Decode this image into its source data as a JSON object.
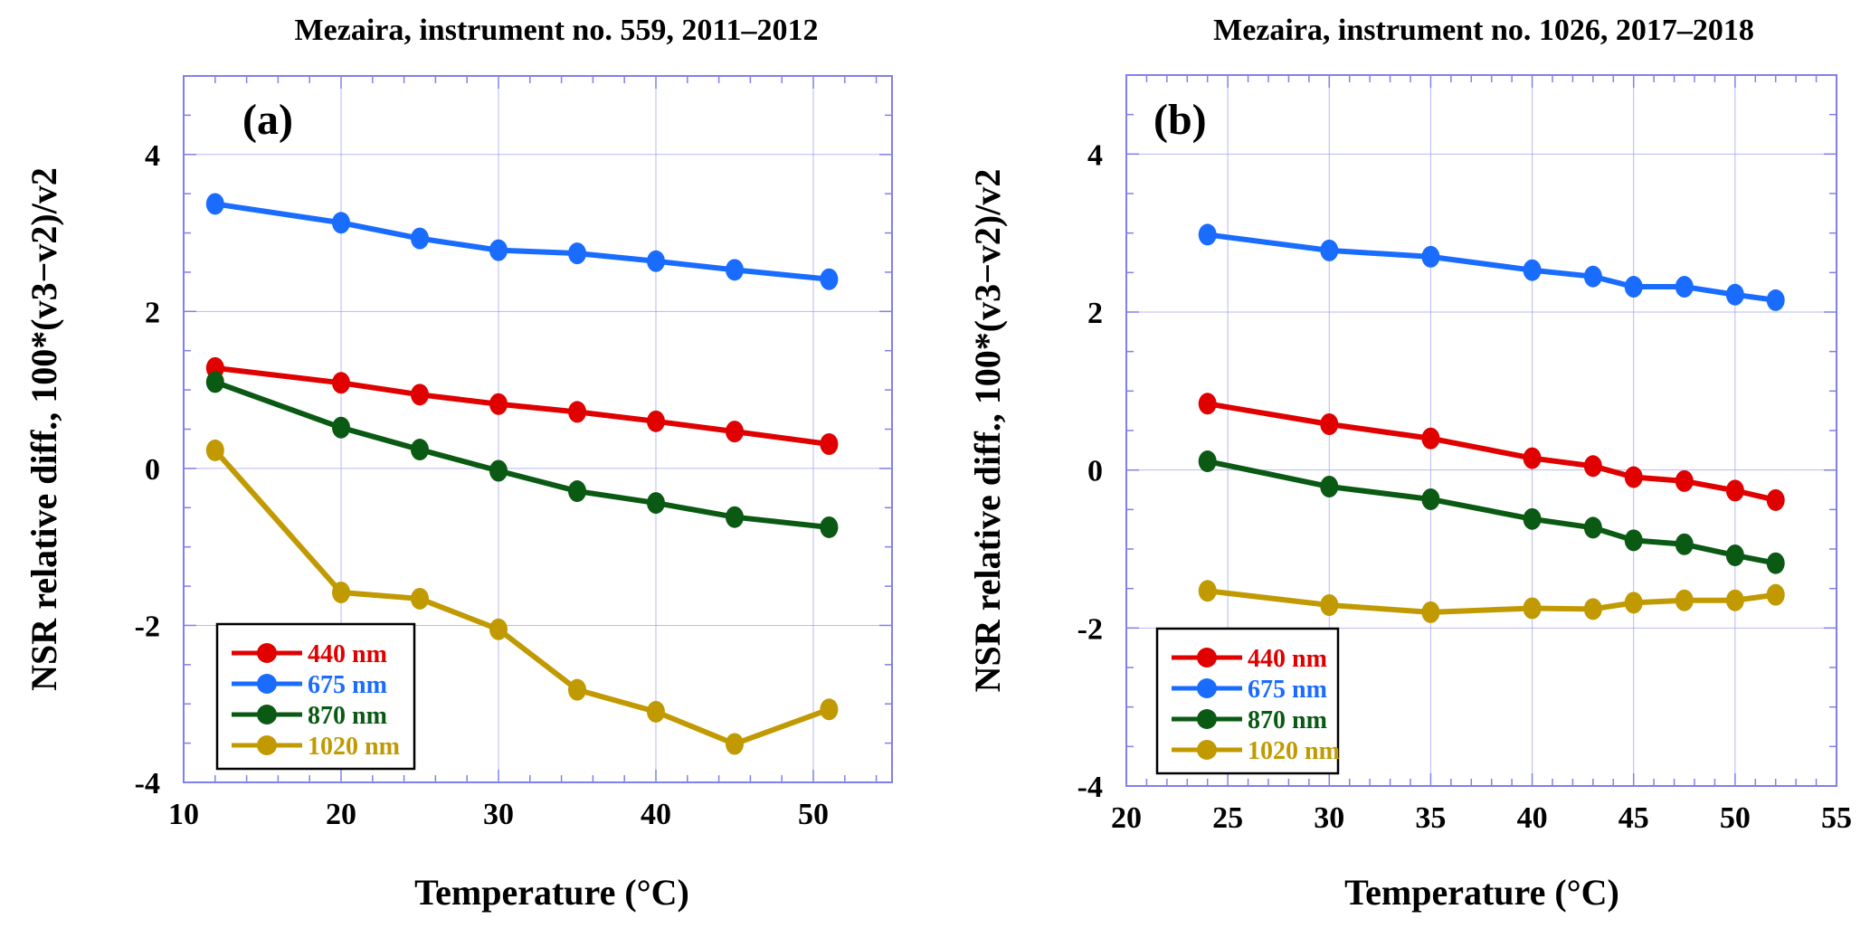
{
  "chart_data": [
    {
      "type": "line",
      "panel_label": "(a)",
      "title": "Mezaira, instrument no. 559, 2011–2012",
      "xlabel": "Temperature (°C)",
      "ylabel": "NSR relative diff., 100*(v3−v2)/v2",
      "xlim": [
        10,
        55
      ],
      "ylim": [
        -4,
        5
      ],
      "xticks": [
        10,
        20,
        30,
        40,
        50
      ],
      "yticks": [
        -4,
        -2,
        0,
        2,
        4
      ],
      "grid": true,
      "legend_position": "bottom-left",
      "x": [
        12,
        20,
        25,
        30,
        35,
        40,
        45,
        51
      ],
      "series": [
        {
          "name": "440 nm",
          "color": "#e00000",
          "values": [
            1.28,
            1.09,
            0.94,
            0.82,
            0.72,
            0.6,
            0.47,
            0.31
          ]
        },
        {
          "name": "675 nm",
          "color": "#1a6cff",
          "values": [
            3.37,
            3.13,
            2.93,
            2.78,
            2.74,
            2.64,
            2.53,
            2.41
          ]
        },
        {
          "name": "870 nm",
          "color": "#0a5a14",
          "values": [
            1.1,
            0.52,
            0.24,
            -0.03,
            -0.29,
            -0.44,
            -0.62,
            -0.75
          ]
        },
        {
          "name": "1020 nm",
          "color": "#c09a00",
          "values": [
            0.23,
            -1.58,
            -1.66,
            -2.05,
            -2.82,
            -3.1,
            -3.51,
            -3.07
          ]
        }
      ]
    },
    {
      "type": "line",
      "panel_label": "(b)",
      "title": "Mezaira, instrument no. 1026, 2017–2018",
      "xlabel": "Temperature (°C)",
      "ylabel": "NSR relative diff., 100*(v3−v2)/v2",
      "xlim": [
        20,
        55
      ],
      "ylim": [
        -4,
        5
      ],
      "xticks": [
        20,
        25,
        30,
        35,
        40,
        45,
        50,
        55
      ],
      "yticks": [
        -4,
        -2,
        0,
        2,
        4
      ],
      "grid": true,
      "legend_position": "bottom-left",
      "x": [
        24,
        30,
        35,
        40,
        43,
        45,
        47.5,
        50,
        52
      ],
      "series": [
        {
          "name": "440 nm",
          "color": "#e00000",
          "values": [
            0.84,
            0.58,
            0.4,
            0.15,
            0.05,
            -0.09,
            -0.14,
            -0.26,
            -0.38
          ]
        },
        {
          "name": "675 nm",
          "color": "#1a6cff",
          "values": [
            2.98,
            2.78,
            2.7,
            2.53,
            2.45,
            2.32,
            2.32,
            2.22,
            2.15
          ]
        },
        {
          "name": "870 nm",
          "color": "#0a5a14",
          "values": [
            0.11,
            -0.21,
            -0.37,
            -0.62,
            -0.73,
            -0.89,
            -0.94,
            -1.08,
            -1.18
          ]
        },
        {
          "name": "1020 nm",
          "color": "#c09a00",
          "values": [
            -1.53,
            -1.71,
            -1.8,
            -1.75,
            -1.76,
            -1.68,
            -1.65,
            -1.65,
            -1.58
          ]
        }
      ]
    }
  ],
  "colors": {
    "grid": "#8c8cf0",
    "axis": "#8080ec"
  }
}
